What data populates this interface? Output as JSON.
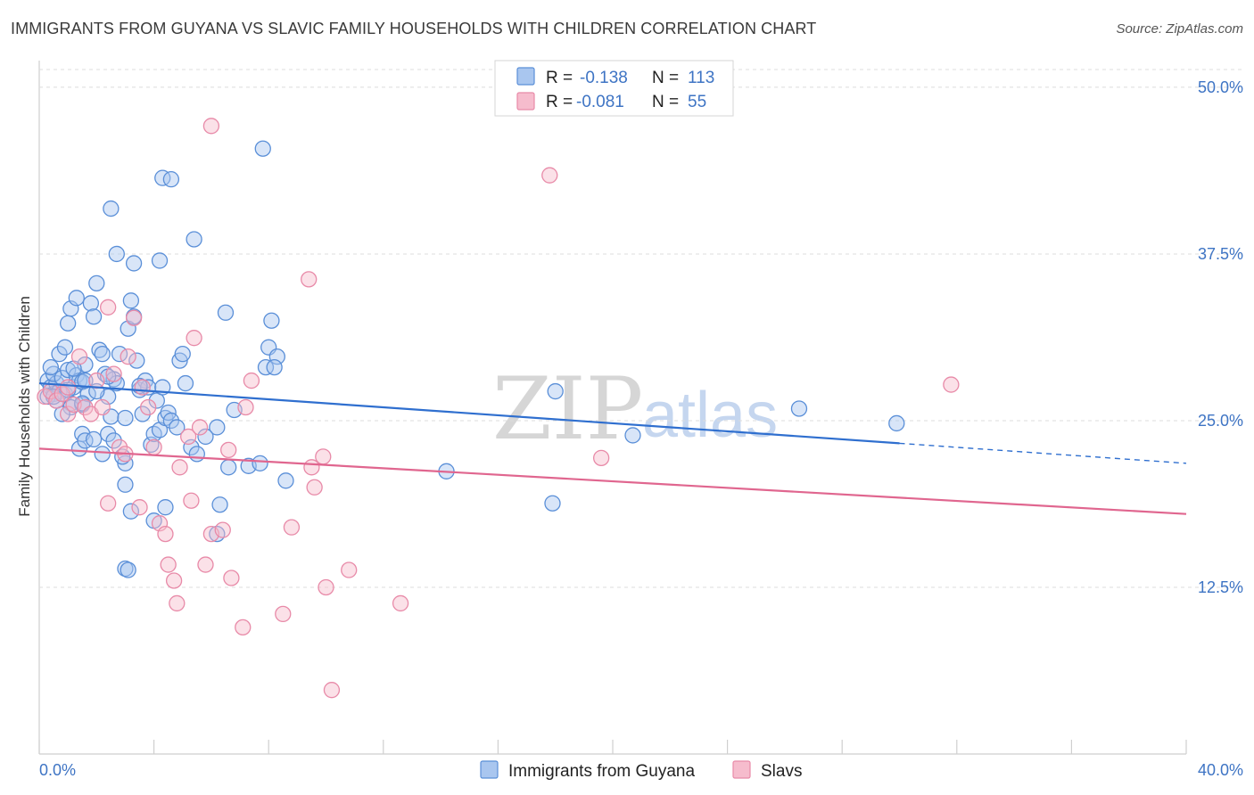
{
  "title": "IMMIGRANTS FROM GUYANA VS SLAVIC FAMILY HOUSEHOLDS WITH CHILDREN CORRELATION CHART",
  "source": "Source: ZipAtlas.com",
  "watermark": {
    "zip": "ZIP",
    "atlas": "atlas"
  },
  "colors": {
    "blue_fill": "#a9c6ef",
    "blue_stroke": "#5a8fd8",
    "blue_line": "#2f6fcf",
    "pink_fill": "#f6bccd",
    "pink_stroke": "#e88aa8",
    "pink_line": "#e0668f",
    "grid": "#dcdcdc",
    "tick_text": "#3e74c4"
  },
  "legend_top": {
    "rows": [
      {
        "r_label": "R =",
        "r_value": "-0.138",
        "n_label": "N =",
        "n_value": "113",
        "color": "blue"
      },
      {
        "r_label": "R =",
        "r_value": "-0.081",
        "n_label": "N =",
        "n_value": "55",
        "color": "pink"
      }
    ]
  },
  "legend_bottom": [
    {
      "label": "Immigrants from Guyana",
      "color": "blue"
    },
    {
      "label": "Slavs",
      "color": "pink"
    }
  ],
  "chart_data": {
    "type": "scatter",
    "title": "IMMIGRANTS FROM GUYANA VS SLAVIC FAMILY HOUSEHOLDS WITH CHILDREN CORRELATION CHART",
    "xlabel": "",
    "ylabel": "Family Households with Children",
    "xlim": [
      0,
      40
    ],
    "ylim": [
      0,
      52
    ],
    "x_tick_labels": [
      "0.0%",
      "40.0%"
    ],
    "y_ticks": [
      12.5,
      25.0,
      37.5,
      50.0
    ],
    "y_tick_labels": [
      "12.5%",
      "25.0%",
      "37.5%",
      "50.0%"
    ],
    "series": [
      {
        "name": "Immigrants from Guyana",
        "color": "blue",
        "R": -0.138,
        "N": 113,
        "trend": {
          "x0": 0,
          "y0": 27.8,
          "x1": 30,
          "y1": 23.3,
          "dash_x1": 40,
          "dash_y1": 21.8
        },
        "points": [
          [
            0.3,
            28.0
          ],
          [
            0.4,
            27.5
          ],
          [
            0.5,
            27.0
          ],
          [
            0.6,
            27.8
          ],
          [
            0.3,
            26.8
          ],
          [
            0.5,
            28.5
          ],
          [
            0.7,
            27.2
          ],
          [
            0.4,
            29.0
          ],
          [
            0.6,
            26.5
          ],
          [
            0.8,
            28.2
          ],
          [
            0.9,
            27.0
          ],
          [
            1.0,
            28.8
          ],
          [
            0.7,
            30.0
          ],
          [
            0.9,
            30.5
          ],
          [
            1.1,
            26.3
          ],
          [
            1.2,
            27.5
          ],
          [
            1.3,
            28.4
          ],
          [
            1.0,
            32.3
          ],
          [
            1.1,
            33.4
          ],
          [
            1.3,
            34.2
          ],
          [
            1.4,
            28.0
          ],
          [
            1.5,
            27.9
          ],
          [
            1.6,
            29.2
          ],
          [
            1.5,
            26.2
          ],
          [
            1.7,
            27.0
          ],
          [
            1.8,
            33.8
          ],
          [
            1.9,
            32.8
          ],
          [
            2.0,
            35.3
          ],
          [
            2.1,
            30.3
          ],
          [
            2.2,
            30.0
          ],
          [
            2.3,
            28.5
          ],
          [
            2.4,
            26.8
          ],
          [
            2.5,
            25.3
          ],
          [
            2.6,
            28.1
          ],
          [
            2.7,
            27.8
          ],
          [
            2.8,
            30.0
          ],
          [
            1.4,
            22.9
          ],
          [
            1.5,
            24.0
          ],
          [
            1.6,
            23.5
          ],
          [
            2.2,
            22.5
          ],
          [
            2.4,
            24.0
          ],
          [
            2.6,
            23.5
          ],
          [
            3.0,
            21.8
          ],
          [
            2.9,
            22.3
          ],
          [
            3.1,
            31.9
          ],
          [
            3.2,
            34.0
          ],
          [
            3.3,
            32.8
          ],
          [
            3.4,
            29.5
          ],
          [
            3.5,
            27.3
          ],
          [
            3.6,
            25.5
          ],
          [
            3.7,
            28.0
          ],
          [
            3.8,
            27.5
          ],
          [
            3.9,
            23.2
          ],
          [
            4.0,
            24.0
          ],
          [
            4.1,
            26.5
          ],
          [
            4.2,
            24.3
          ],
          [
            4.3,
            27.5
          ],
          [
            4.4,
            25.2
          ],
          [
            4.5,
            25.6
          ],
          [
            4.6,
            25.0
          ],
          [
            4.9,
            29.5
          ],
          [
            5.0,
            30.0
          ],
          [
            5.1,
            27.8
          ],
          [
            5.3,
            23.0
          ],
          [
            5.5,
            22.5
          ],
          [
            2.5,
            40.9
          ],
          [
            2.7,
            37.5
          ],
          [
            3.3,
            36.8
          ],
          [
            4.3,
            43.2
          ],
          [
            4.6,
            43.1
          ],
          [
            4.2,
            37.0
          ],
          [
            5.4,
            38.6
          ],
          [
            6.5,
            33.1
          ],
          [
            7.8,
            45.4
          ],
          [
            8.1,
            32.5
          ],
          [
            8.0,
            30.5
          ],
          [
            8.3,
            29.8
          ],
          [
            7.9,
            29.0
          ],
          [
            8.2,
            29.0
          ],
          [
            6.8,
            25.8
          ],
          [
            6.2,
            24.5
          ],
          [
            6.6,
            21.5
          ],
          [
            7.3,
            21.6
          ],
          [
            7.7,
            21.8
          ],
          [
            8.6,
            20.5
          ],
          [
            6.3,
            18.7
          ],
          [
            6.2,
            16.5
          ],
          [
            4.4,
            18.5
          ],
          [
            3.2,
            18.2
          ],
          [
            4.0,
            17.5
          ],
          [
            3.0,
            13.9
          ],
          [
            3.1,
            13.8
          ],
          [
            3.0,
            20.2
          ],
          [
            14.2,
            21.2
          ],
          [
            17.9,
            18.8
          ],
          [
            18.0,
            27.2
          ],
          [
            20.7,
            23.9
          ],
          [
            26.5,
            25.9
          ],
          [
            29.9,
            24.8
          ],
          [
            1.1,
            26.0
          ],
          [
            1.9,
            23.6
          ],
          [
            0.8,
            25.5
          ],
          [
            1.2,
            28.9
          ],
          [
            1.6,
            28.0
          ],
          [
            2.4,
            28.3
          ],
          [
            0.5,
            26.8
          ],
          [
            1.0,
            27.3
          ],
          [
            1.5,
            26.3
          ],
          [
            2.0,
            27.2
          ],
          [
            3.0,
            25.2
          ],
          [
            3.5,
            27.6
          ],
          [
            4.8,
            24.5
          ],
          [
            5.8,
            23.8
          ]
        ]
      },
      {
        "name": "Slavs",
        "color": "pink",
        "R": -0.081,
        "N": 55,
        "trend": {
          "x0": 0,
          "y0": 22.9,
          "x1": 40,
          "y1": 18.0
        },
        "points": [
          [
            0.2,
            26.8
          ],
          [
            0.4,
            27.2
          ],
          [
            0.6,
            26.5
          ],
          [
            0.8,
            27.0
          ],
          [
            1.0,
            25.5
          ],
          [
            1.2,
            26.2
          ],
          [
            1.4,
            29.8
          ],
          [
            1.6,
            26.0
          ],
          [
            1.8,
            25.5
          ],
          [
            2.0,
            28.0
          ],
          [
            2.2,
            26.0
          ],
          [
            2.4,
            33.5
          ],
          [
            2.6,
            28.5
          ],
          [
            2.8,
            23.0
          ],
          [
            3.0,
            22.5
          ],
          [
            3.1,
            29.8
          ],
          [
            3.3,
            32.7
          ],
          [
            3.6,
            27.5
          ],
          [
            3.8,
            26.0
          ],
          [
            4.0,
            23.0
          ],
          [
            4.2,
            17.3
          ],
          [
            4.4,
            16.5
          ],
          [
            4.5,
            14.2
          ],
          [
            4.7,
            13.0
          ],
          [
            4.8,
            11.3
          ],
          [
            4.9,
            21.5
          ],
          [
            5.2,
            23.8
          ],
          [
            5.3,
            19.0
          ],
          [
            5.6,
            24.5
          ],
          [
            5.8,
            14.2
          ],
          [
            6.0,
            16.5
          ],
          [
            6.4,
            16.8
          ],
          [
            6.6,
            22.8
          ],
          [
            6.7,
            13.2
          ],
          [
            7.1,
            9.5
          ],
          [
            7.4,
            28.0
          ],
          [
            7.2,
            26.0
          ],
          [
            8.5,
            10.5
          ],
          [
            8.8,
            17.0
          ],
          [
            9.4,
            35.6
          ],
          [
            9.5,
            21.5
          ],
          [
            9.6,
            20.0
          ],
          [
            9.9,
            22.3
          ],
          [
            10.0,
            12.5
          ],
          [
            10.2,
            4.8
          ],
          [
            10.8,
            13.8
          ],
          [
            12.6,
            11.3
          ],
          [
            17.8,
            43.4
          ],
          [
            19.6,
            22.2
          ],
          [
            31.8,
            27.7
          ],
          [
            6.0,
            47.1
          ],
          [
            5.4,
            31.2
          ],
          [
            3.5,
            18.5
          ],
          [
            2.4,
            18.8
          ],
          [
            1.0,
            27.5
          ]
        ]
      }
    ]
  }
}
